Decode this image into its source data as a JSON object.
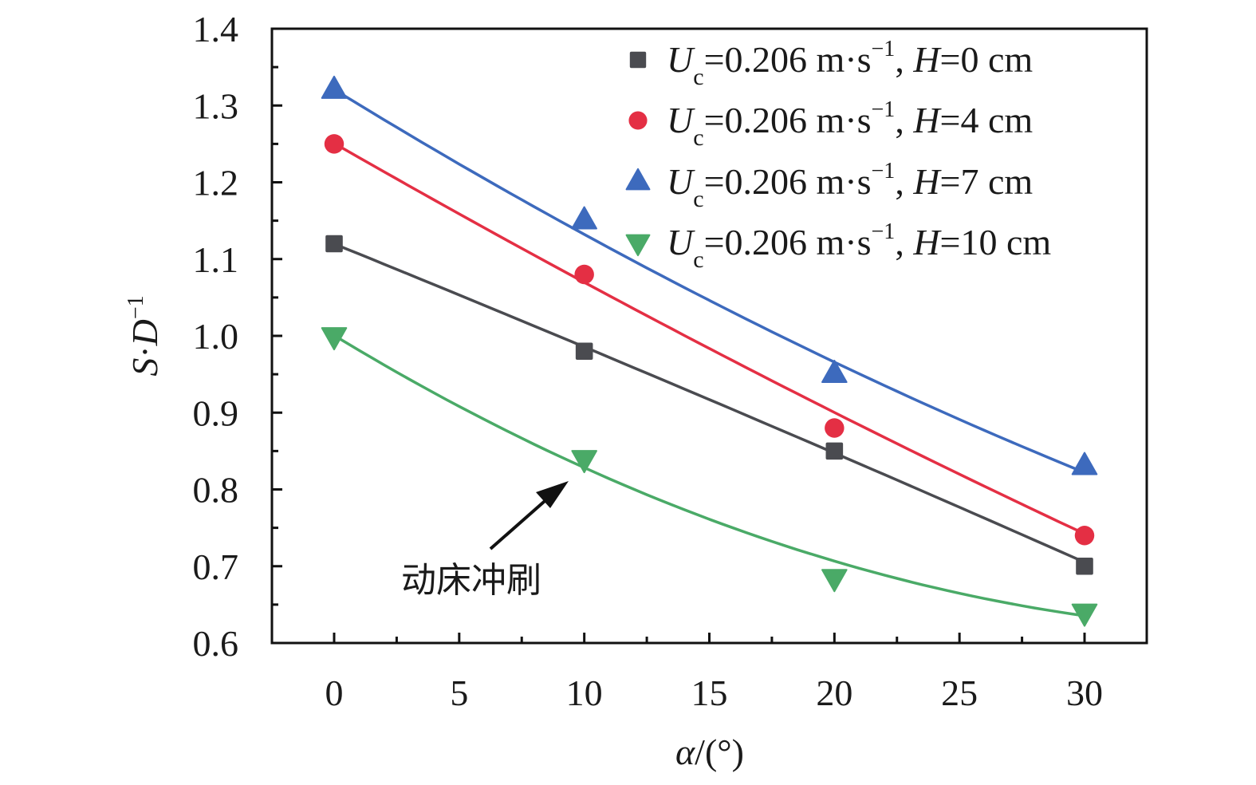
{
  "chart_data": {
    "type": "scatter",
    "title": "",
    "xlabel": "α/(°)",
    "ylabel": "S·D⁻¹",
    "xlabel_parts": {
      "var": "α",
      "rest": "/(°)"
    },
    "ylabel_parts": {
      "s": "S",
      "dot": "·",
      "d": "D",
      "sup": "−1"
    },
    "xlim": [
      -5,
      33
    ],
    "ylim": [
      0.6,
      1.4
    ],
    "xticks": [
      0,
      5,
      10,
      15,
      20,
      25,
      30
    ],
    "xtick_labels": [
      "0",
      "5",
      "10",
      "15",
      "20",
      "25",
      "30"
    ],
    "yticks": [
      0.6,
      0.7,
      0.8,
      0.9,
      1.0,
      1.1,
      1.2,
      1.3,
      1.4
    ],
    "ytick_labels": [
      "0.6",
      "0.7",
      "0.8",
      "0.9",
      "1.0",
      "1.1",
      "1.2",
      "1.3",
      "1.4"
    ],
    "grid": false,
    "legend_position": "top-right",
    "x": [
      0,
      10,
      20,
      30
    ],
    "series": [
      {
        "name": "Uc=0.206 m·s−1, H=0 cm",
        "legend": {
          "u": "U",
          "sub": "c",
          "mid": "=0.206 m·s",
          "sup": "−1",
          "comma": ", ",
          "h": "H",
          "tail": "=0 cm"
        },
        "marker": "square",
        "color": "#4a4b50",
        "values": [
          1.12,
          0.98,
          0.85,
          0.7
        ],
        "fit": [
          1.12,
          0.985,
          0.848,
          0.705
        ]
      },
      {
        "name": "Uc=0.206 m·s−1, H=4 cm",
        "legend": {
          "u": "U",
          "sub": "c",
          "mid": "=0.206 m·s",
          "sup": "−1",
          "comma": ", ",
          "h": "H",
          "tail": "=4 cm"
        },
        "marker": "circle",
        "color": "#e42f44",
        "values": [
          1.25,
          1.08,
          0.88,
          0.74
        ],
        "fit": [
          1.25,
          1.072,
          0.898,
          0.743
        ]
      },
      {
        "name": "Uc=0.206 m·s−1, H=7 cm",
        "legend": {
          "u": "U",
          "sub": "c",
          "mid": "=0.206 m·s",
          "sup": "−1",
          "comma": ", ",
          "h": "H",
          "tail": "=7 cm"
        },
        "marker": "triangle-up",
        "color": "#3d6abd",
        "values": [
          1.32,
          1.15,
          0.95,
          0.83
        ],
        "fit": [
          1.32,
          1.135,
          0.963,
          0.823
        ]
      },
      {
        "name": "Uc=0.206 m·s−1, H=10 cm",
        "legend": {
          "u": "U",
          "sub": "c",
          "mid": "=0.206 m·s",
          "sup": "−1",
          "comma": ", ",
          "h": "H",
          "tail": "=10 cm"
        },
        "marker": "triangle-down",
        "color": "#4aaa67",
        "values": [
          1.0,
          0.84,
          0.685,
          0.64
        ],
        "fit": [
          1.0,
          0.83,
          0.705,
          0.636
        ]
      }
    ],
    "annotations": [
      {
        "text": "动床冲刷",
        "arrow": true,
        "points_to": {
          "x": 9.3,
          "y": 0.82
        }
      }
    ]
  }
}
